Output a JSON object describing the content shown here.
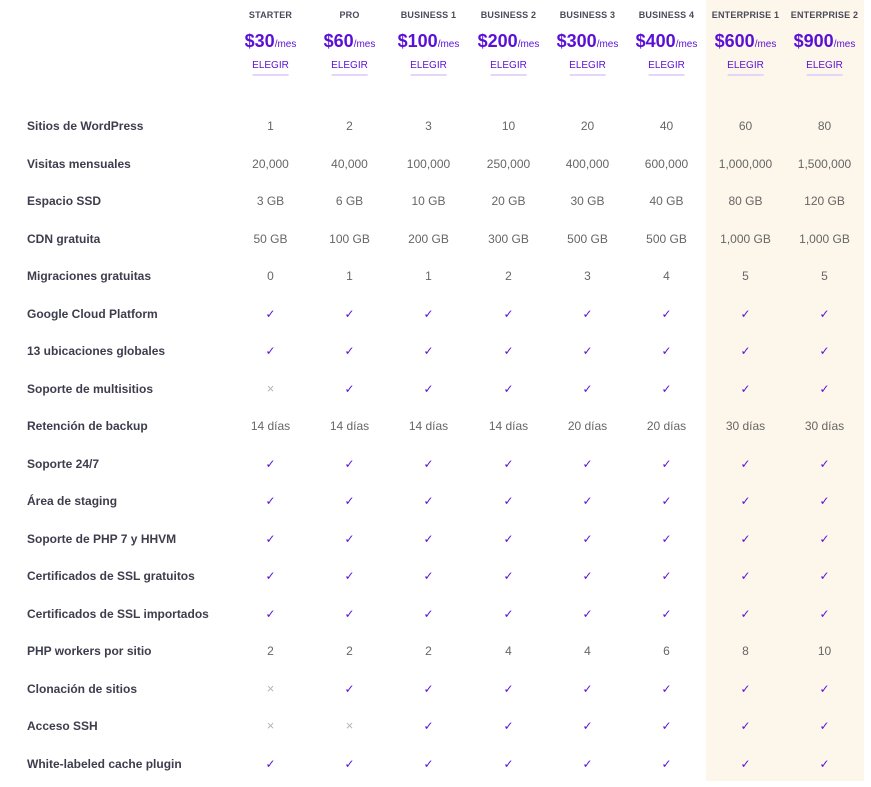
{
  "plans": [
    {
      "name": "STARTER",
      "price": "$30",
      "suffix": "/mes",
      "choose": "ELEGIR"
    },
    {
      "name": "PRO",
      "price": "$60",
      "suffix": "/mes",
      "choose": "ELEGIR"
    },
    {
      "name": "BUSINESS 1",
      "price": "$100",
      "suffix": "/mes",
      "choose": "ELEGIR"
    },
    {
      "name": "BUSINESS 2",
      "price": "$200",
      "suffix": "/mes",
      "choose": "ELEGIR"
    },
    {
      "name": "BUSINESS 3",
      "price": "$300",
      "suffix": "/mes",
      "choose": "ELEGIR"
    },
    {
      "name": "BUSINESS 4",
      "price": "$400",
      "suffix": "/mes",
      "choose": "ELEGIR"
    },
    {
      "name": "ENTERPRISE 1",
      "price": "$600",
      "suffix": "/mes",
      "choose": "ELEGIR"
    },
    {
      "name": "ENTERPRISE 2",
      "price": "$900",
      "suffix": "/mes",
      "choose": "ELEGIR"
    }
  ],
  "icons": {
    "check": "check-icon",
    "cross": "cross-icon"
  },
  "colors": {
    "accent": "#5b10d6",
    "enterprise_bg": "#fdf6ea",
    "cross": "#b5b5b5"
  },
  "features": [
    {
      "label": "Sitios de WordPress",
      "values": [
        "1",
        "2",
        "3",
        "10",
        "20",
        "40",
        "60",
        "80"
      ]
    },
    {
      "label": "Visitas mensuales",
      "values": [
        "20,000",
        "40,000",
        "100,000",
        "250,000",
        "400,000",
        "600,000",
        "1,000,000",
        "1,500,000"
      ]
    },
    {
      "label": "Espacio SSD",
      "values": [
        "3 GB",
        "6 GB",
        "10 GB",
        "20 GB",
        "30 GB",
        "40 GB",
        "80 GB",
        "120 GB"
      ]
    },
    {
      "label": "CDN gratuita",
      "values": [
        "50 GB",
        "100 GB",
        "200 GB",
        "300 GB",
        "500 GB",
        "500 GB",
        "1,000 GB",
        "1,000 GB"
      ]
    },
    {
      "label": "Migraciones gratuitas",
      "values": [
        "0",
        "1",
        "1",
        "2",
        "3",
        "4",
        "5",
        "5"
      ]
    },
    {
      "label": "Google Cloud Platform",
      "values": [
        "check",
        "check",
        "check",
        "check",
        "check",
        "check",
        "check",
        "check"
      ]
    },
    {
      "label": "13 ubicaciones globales",
      "values": [
        "check",
        "check",
        "check",
        "check",
        "check",
        "check",
        "check",
        "check"
      ]
    },
    {
      "label": "Soporte de multisitios",
      "values": [
        "cross",
        "check",
        "check",
        "check",
        "check",
        "check",
        "check",
        "check"
      ]
    },
    {
      "label": "Retención de backup",
      "values": [
        "14 días",
        "14 días",
        "14 días",
        "14 días",
        "20 días",
        "20 días",
        "30 días",
        "30 días"
      ]
    },
    {
      "label": "Soporte 24/7",
      "values": [
        "check",
        "check",
        "check",
        "check",
        "check",
        "check",
        "check",
        "check"
      ]
    },
    {
      "label": "Área de staging",
      "values": [
        "check",
        "check",
        "check",
        "check",
        "check",
        "check",
        "check",
        "check"
      ]
    },
    {
      "label": "Soporte de PHP 7 y HHVM",
      "values": [
        "check",
        "check",
        "check",
        "check",
        "check",
        "check",
        "check",
        "check"
      ]
    },
    {
      "label": "Certificados de SSL gratuitos",
      "values": [
        "check",
        "check",
        "check",
        "check",
        "check",
        "check",
        "check",
        "check"
      ]
    },
    {
      "label": "Certificados de SSL importados",
      "values": [
        "check",
        "check",
        "check",
        "check",
        "check",
        "check",
        "check",
        "check"
      ]
    },
    {
      "label": "PHP workers por sitio",
      "values": [
        "2",
        "2",
        "2",
        "4",
        "4",
        "6",
        "8",
        "10"
      ]
    },
    {
      "label": "Clonación de sitios",
      "values": [
        "cross",
        "check",
        "check",
        "check",
        "check",
        "check",
        "check",
        "check"
      ]
    },
    {
      "label": "Acceso SSH",
      "values": [
        "cross",
        "cross",
        "check",
        "check",
        "check",
        "check",
        "check",
        "check"
      ]
    },
    {
      "label": "White-labeled cache plugin",
      "values": [
        "check",
        "check",
        "check",
        "check",
        "check",
        "check",
        "check",
        "check"
      ]
    }
  ]
}
